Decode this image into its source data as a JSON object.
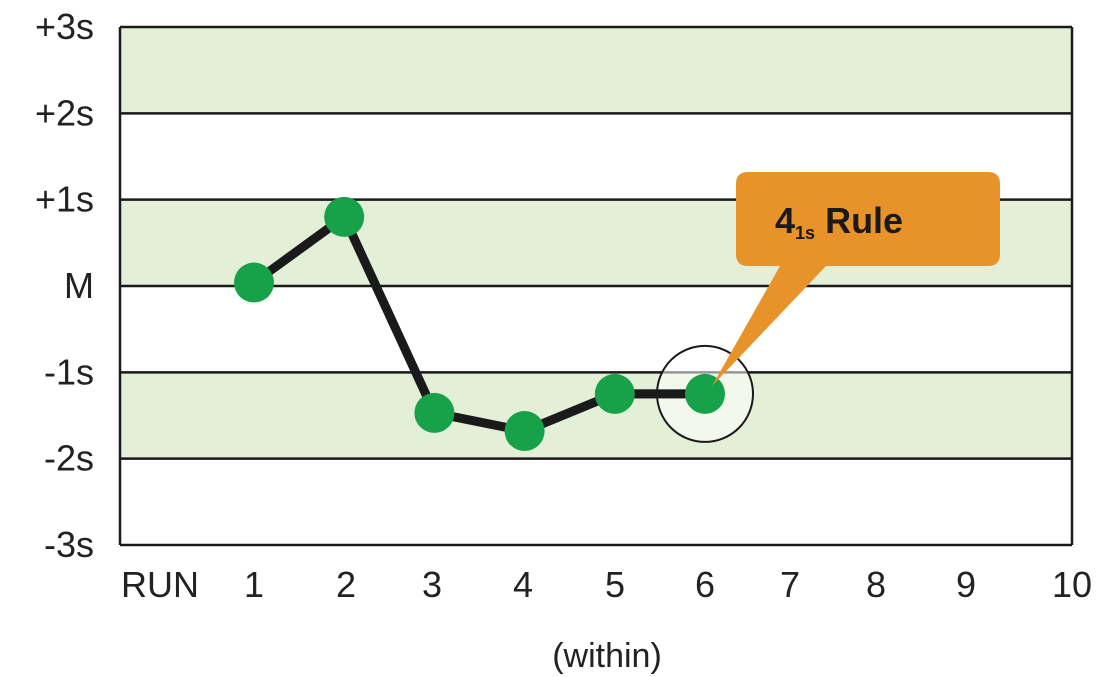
{
  "chart_data": {
    "type": "line",
    "y_tick_labels": [
      "+3s",
      "+2s",
      "+1s",
      "M",
      "-1s",
      "-2s",
      "-3s"
    ],
    "y_tick_values": [
      3,
      2,
      1,
      0,
      -1,
      -2,
      -3
    ],
    "ylim": [
      -3,
      3
    ],
    "x_axis_prefix": "RUN",
    "x_categories": [
      "1",
      "2",
      "3",
      "4",
      "5",
      "6",
      "7",
      "8",
      "9",
      "10"
    ],
    "xlabel": "(within)",
    "shaded_bands": [
      [
        2,
        3
      ],
      [
        0,
        1
      ],
      [
        -2,
        -1
      ]
    ],
    "grid": true,
    "series": [
      {
        "x": [
          1,
          2,
          3,
          4,
          5,
          6
        ],
        "y": [
          0.04,
          0.8,
          -1.47,
          -1.68,
          -1.25,
          -1.25
        ]
      }
    ],
    "highlight_point_index": 5,
    "annotation": {
      "main": "4",
      "subscript": "1s",
      "suffix": " Rule"
    },
    "colors": {
      "band": "#e3efd6",
      "grid": "#1a1a1a",
      "line": "#1a1a1a",
      "point": "#17a24a",
      "callout": "#e8922a",
      "callout_text": "#1a1a1a"
    }
  }
}
